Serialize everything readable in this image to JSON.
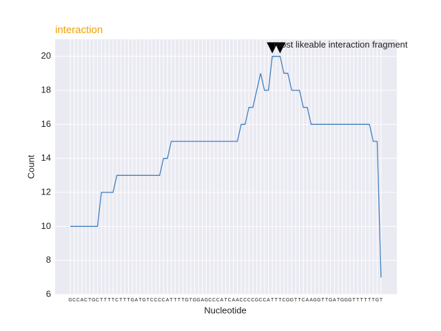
{
  "chart_data": {
    "type": "line",
    "title": "interaction",
    "title_color": "#f0a000",
    "xlabel": "Nucleotide",
    "ylabel": "Count",
    "categories": [
      "G",
      "C",
      "C",
      "A",
      "C",
      "T",
      "G",
      "C",
      "T",
      "T",
      "T",
      "T",
      "C",
      "T",
      "T",
      "T",
      "G",
      "A",
      "T",
      "G",
      "T",
      "C",
      "C",
      "C",
      "C",
      "A",
      "T",
      "T",
      "T",
      "T",
      "G",
      "T",
      "G",
      "G",
      "A",
      "G",
      "C",
      "C",
      "C",
      "A",
      "T",
      "C",
      "A",
      "A",
      "C",
      "C",
      "C",
      "C",
      "G",
      "C",
      "C",
      "A",
      "T",
      "T",
      "T",
      "C",
      "G",
      "G",
      "T",
      "T",
      "C",
      "A",
      "A",
      "G",
      "G",
      "T",
      "T",
      "G",
      "A",
      "T",
      "G",
      "G",
      "G",
      "T",
      "T",
      "T",
      "T",
      "T",
      "T",
      "G",
      "T"
    ],
    "series": [
      {
        "name": "Count",
        "color": "#3f7fbf",
        "values": [
          10,
          10,
          10,
          10,
          10,
          10,
          10,
          10,
          12,
          12,
          12,
          12,
          13,
          13,
          13,
          13,
          13,
          13,
          13,
          13,
          13,
          13,
          13,
          13,
          14,
          14,
          15,
          15,
          15,
          15,
          15,
          15,
          15,
          15,
          15,
          15,
          15,
          15,
          15,
          15,
          15,
          15,
          15,
          15,
          16,
          16,
          17,
          17,
          18,
          19,
          18,
          18,
          20,
          20,
          20,
          19,
          19,
          18,
          18,
          18,
          17,
          17,
          16,
          16,
          16,
          16,
          16,
          16,
          16,
          16,
          16,
          16,
          16,
          16,
          16,
          16,
          16,
          16,
          15,
          15,
          7
        ]
      }
    ],
    "markers": [
      {
        "index": 52,
        "value": 20.5
      },
      {
        "index": 54,
        "value": 20.5
      }
    ],
    "annotation": "most likeable interaction fragment",
    "ylim": [
      6,
      21
    ],
    "yticks": [
      6,
      8,
      10,
      12,
      14,
      16,
      18,
      20
    ],
    "grid": true
  }
}
